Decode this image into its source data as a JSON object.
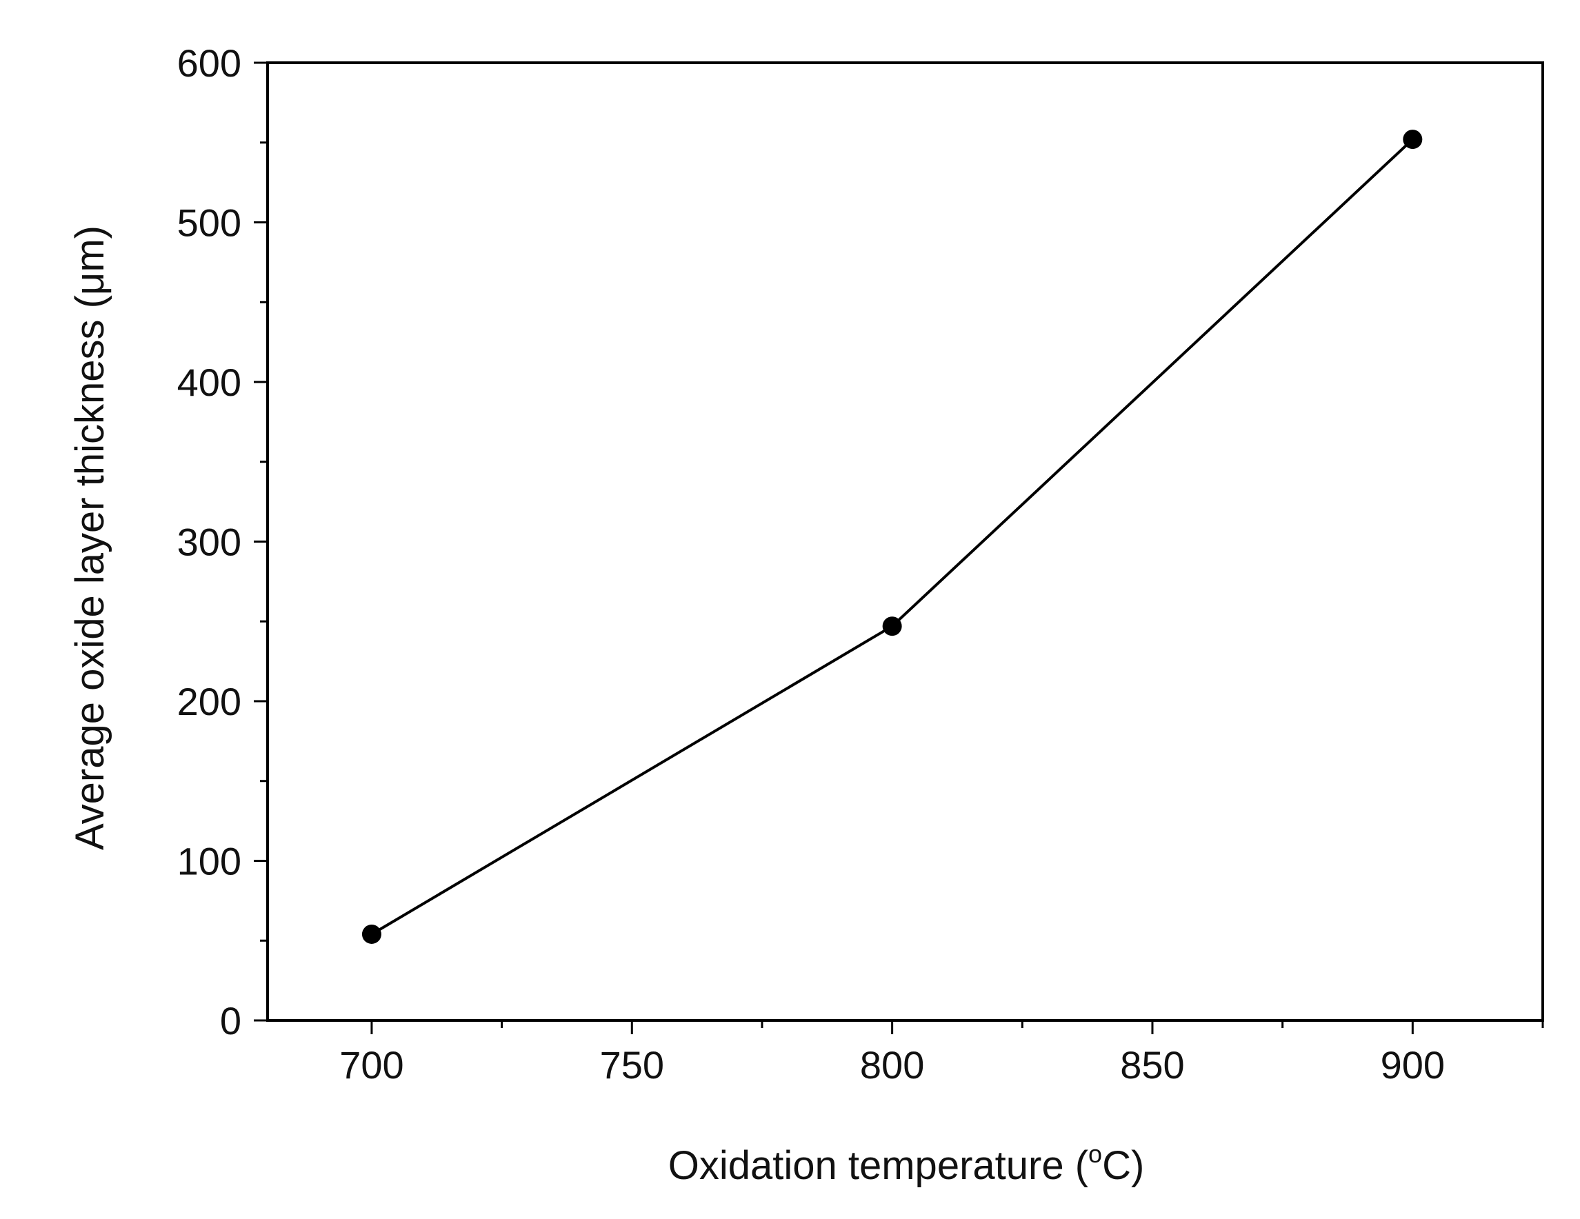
{
  "chart_data": {
    "type": "line",
    "title": "",
    "xlabel": "Oxidation temperature (°C)",
    "xlabel_parts": {
      "prefix": "Oxidation temperature (",
      "superscript": "o",
      "suffix": "C)"
    },
    "ylabel": "Average oxide layer thickness (μm)",
    "xlim": [
      680,
      925
    ],
    "ylim": [
      0,
      600
    ],
    "x_ticks": [
      700,
      750,
      800,
      850,
      900
    ],
    "x_tick_labels": [
      "700",
      "750",
      "800",
      "850",
      "900"
    ],
    "x_minor_ticks": [
      725,
      775,
      825,
      875,
      925
    ],
    "y_ticks": [
      0,
      100,
      200,
      300,
      400,
      500,
      600
    ],
    "y_tick_labels": [
      "0",
      "100",
      "200",
      "300",
      "400",
      "500",
      "600"
    ],
    "y_minor_ticks": [
      50,
      150,
      250,
      350,
      450,
      550
    ],
    "grid": false,
    "legend": "none",
    "series": [
      {
        "name": "Average oxide layer thickness",
        "x": [
          700,
          800,
          900
        ],
        "y": [
          54,
          247,
          552
        ],
        "color": "#000000",
        "marker": "circle"
      }
    ]
  }
}
